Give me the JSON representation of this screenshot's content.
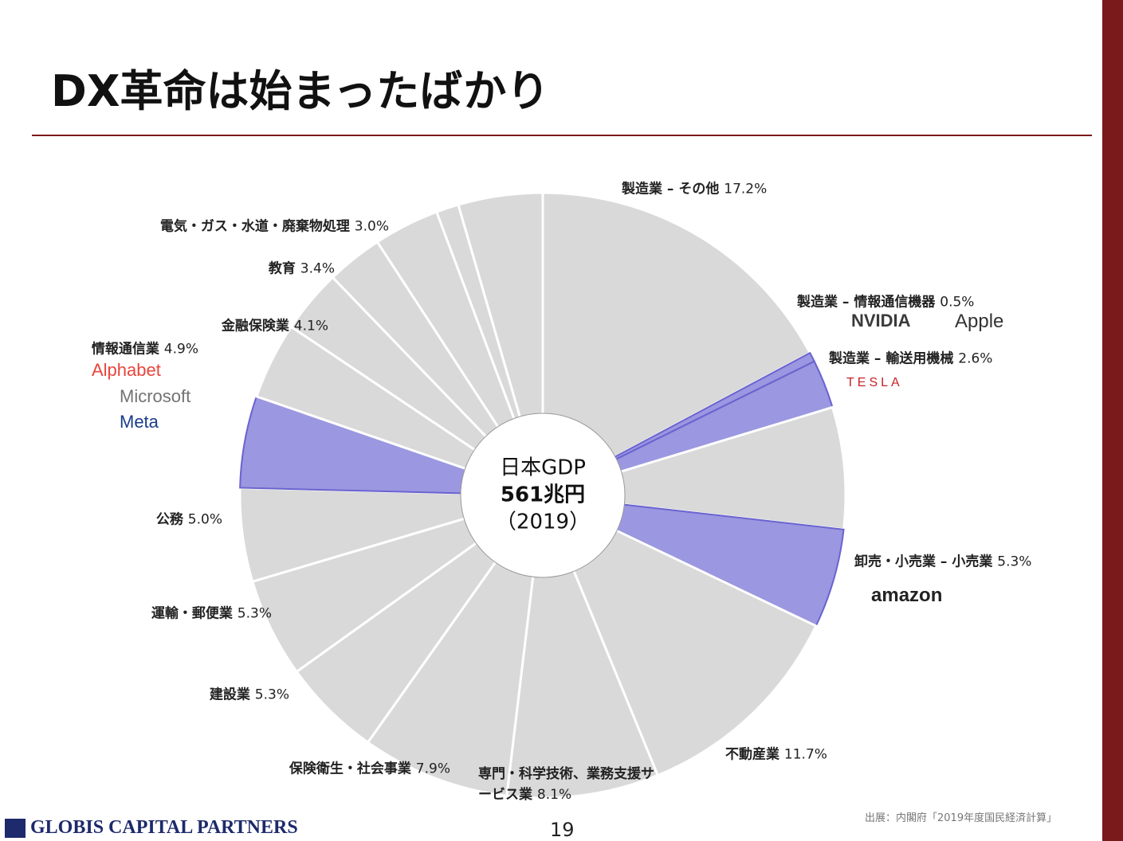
{
  "slide": {
    "title": "DX革命は始まったばかり",
    "source": "出展：内閣府「2019年度国民経済計算」",
    "footer": "GLOBIS CAPITAL PARTNERS",
    "page": "19"
  },
  "chart_data": {
    "type": "donut",
    "center_label": [
      "日本GDP",
      "561兆円",
      "（2019）"
    ],
    "categories": [
      "製造業 – その他",
      "製造業 – 情報通信機器",
      "製造業 – 輸送用機械",
      null,
      "卸売・小売業 – 小売業",
      "不動産業",
      "専門・科学技術、業務支援サービス業",
      "保険衛生・社会事業",
      "建設業",
      "運輸・郵便業",
      "公務",
      "情報通信業",
      "金融保険業",
      "教育",
      "電気・ガス・水道・廃棄物処理",
      null,
      null,
      null
    ],
    "values": [
      17.2,
      0.5,
      2.6,
      6.5,
      5.3,
      11.7,
      8.1,
      7.9,
      5.3,
      5.3,
      5.0,
      4.9,
      4.1,
      3.4,
      3.0,
      3.5,
      1.2,
      4.5
    ],
    "value_labels": [
      "17.2%",
      "0.5%",
      "2.6%",
      null,
      "5.3%",
      "11.7%",
      "8.1%",
      "7.9%",
      "5.3%",
      "5.3%",
      "5.0%",
      "4.9%",
      "4.1%",
      "3.4%",
      "3.0%",
      null,
      null,
      null
    ],
    "colors": [
      "#d9d9d9",
      "#9b97e0",
      "#9b97e0",
      "#d9d9d9",
      "#9b97e0",
      "#d9d9d9",
      "#d9d9d9",
      "#d9d9d9",
      "#d9d9d9",
      "#d9d9d9",
      "#d9d9d9",
      "#9b97e0",
      "#d9d9d9",
      "#d9d9d9",
      "#d9d9d9",
      "#d9d9d9",
      "#d9d9d9",
      "#d9d9d9"
    ],
    "annotations": [
      {
        "text": "NVIDIA",
        "color": "#3a3a3a"
      },
      {
        "text": "Apple",
        "color": "#333333"
      },
      {
        "text": "TESLA",
        "color": "#c8202a"
      },
      {
        "text": "Alphabet",
        "color": "#e8453c"
      },
      {
        "text": "Microsoft",
        "color": "#737373"
      },
      {
        "text": "Meta",
        "color": "#1a3c8a"
      },
      {
        "text": "amazon",
        "color": "#222222"
      }
    ]
  }
}
